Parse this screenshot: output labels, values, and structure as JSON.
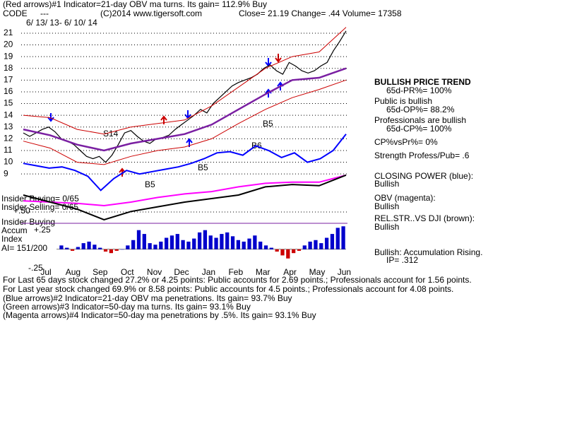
{
  "header": {
    "line1": "(Red arrows)#1 Indicator=21-day OBV ma turns. Its gain= 112.9% Buy",
    "code_label": "CODE",
    "code": "---",
    "copyright": "(C)2014 www.tigersoft.com",
    "quote": "Close=  21.19  Change= .44 Volume= 17358",
    "date_range": "6/ 13/ 13- 6/ 10/ 14"
  },
  "side_panel": [
    "BULLISH PRICE TREND",
    "65d-PR%= 100%",
    "Public is bullish",
    "65d-OP%= 88.2%",
    "Professionals are bullish",
    "65d-CP%= 100%",
    "CP%vsPr%=  0%",
    "Strength Profess/Pub= .6",
    "CLOSING POWER (blue):",
    "Bullish",
    "OBV (magenta):",
    "Bullish",
    "REL.STR..VS DJI (brown):",
    "Bullish",
    "Bullish: Accumulation Rising.",
    "IP=  .312"
  ],
  "left_labels": [
    "Insider Buying= 0/65",
    "Insider Selling= 0/65",
    "Insider Buying",
    "Accum",
    "Index",
    "AI= 151/200"
  ],
  "annotations": [
    "S14",
    "B5",
    "B6",
    "B5",
    "B5"
  ],
  "footer": [
    "For Last 65 days stock changed  27.2% or  4.25 points:  Public accounts for  2.69 points.;  Professionals account for  1.56 points.",
    "For Last year stock changed  69.9% or  8.58 points:  Public accounts for  4.5 points.;  Professionals account for  4.08 points.",
    "(Blue arrows)#2 Indicator=21-day OBV ma penetrations. Its gain= 93.7% Buy",
    "(Green arrows)#3 Indicator=50-day ma turns. Its gain= 93.1% Buy",
    "(Magenta arrows)#4 Indicator=50-day ma penetrations by .5%. Its gain= 93.1% Buy"
  ],
  "chart_data": [
    {
      "type": "line",
      "x_labels": [
        "Jul",
        "Aug",
        "Sep",
        "Oct",
        "Nov",
        "Dec",
        "Jan",
        "Feb",
        "Mar",
        "Apr",
        "May",
        "Jun"
      ],
      "ylim": [
        4.6,
        21.9
      ],
      "yticks": [
        9,
        10,
        11,
        12,
        13,
        14,
        15,
        16,
        17,
        18,
        19,
        20,
        21
      ],
      "grid": true,
      "series": [
        {
          "color": "#000000",
          "width": 1.2,
          "values": [
            12.5,
            12.2,
            12.5,
            12.8,
            13.0,
            12.6,
            12.0,
            11.8,
            11.5,
            11.0,
            10.5,
            10.3,
            10.5,
            10.0,
            10.6,
            11.5,
            12.5,
            12.7,
            12.2,
            11.8,
            11.6,
            12.0,
            12.1,
            12.3,
            12.8,
            13.2,
            13.6,
            14.0,
            14.5,
            14.2,
            15.0,
            15.5,
            16.0,
            16.5,
            16.8,
            17.0,
            17.2,
            17.5,
            18.0,
            18.3,
            17.8,
            17.5,
            18.5,
            18.2,
            17.8,
            17.6,
            17.8,
            18.2,
            18.5,
            19.5,
            20.3,
            21.19
          ]
        },
        {
          "color": "#cc0000",
          "width": 1,
          "values": [
            14.0,
            13.8,
            12.8,
            12.4,
            13.0,
            13.3,
            13.6,
            14.8,
            16.4,
            18.0,
            19.0,
            19.4,
            21.5
          ]
        },
        {
          "color": "#cc0000",
          "width": 1,
          "values": [
            11.8,
            11.2,
            10.0,
            9.8,
            10.5,
            11.0,
            11.3,
            12.0,
            13.3,
            14.5,
            15.5,
            16.2,
            17.0
          ]
        },
        {
          "color": "#7a1fa2",
          "width": 2.5,
          "values": [
            12.8,
            12.3,
            11.5,
            11.0,
            11.6,
            12.0,
            12.4,
            13.2,
            14.5,
            15.8,
            17.0,
            17.2,
            18.0
          ]
        },
        {
          "color": "#0000ff",
          "width": 2,
          "values": [
            9.9,
            9.7,
            9.5,
            9.6,
            9.3,
            8.8,
            7.6,
            8.6,
            9.3,
            9.0,
            9.2,
            9.4,
            9.6,
            9.9,
            10.3,
            10.8,
            10.9,
            10.6,
            11.4,
            11.0,
            10.4,
            10.8,
            10.0,
            10.3,
            11.0,
            12.4
          ]
        },
        {
          "color": "#ff00ff",
          "width": 2,
          "values": [
            6.7,
            6.6,
            6.5,
            6.3,
            6.6,
            7.0,
            7.3,
            7.5,
            7.9,
            8.2,
            8.3,
            8.3,
            8.9
          ]
        },
        {
          "color": "#000000",
          "width": 2,
          "values": [
            7.2,
            6.6,
            6.0,
            5.1,
            5.8,
            6.2,
            6.6,
            6.9,
            7.2,
            7.9,
            8.1,
            8.0,
            8.9
          ]
        }
      ]
    },
    {
      "type": "bar",
      "ylim": [
        -0.27,
        0.33
      ],
      "yticks": [
        {
          "value": 0.5,
          "label": "+.50"
        },
        {
          "value": 0.25,
          "label": "+.25"
        },
        {
          "value": -0.25,
          "label": "-.25"
        }
      ],
      "pos_color": "#0000cc",
      "neg_color": "#cc0000",
      "values": [
        0.05,
        0.02,
        -0.02,
        0.03,
        0.08,
        0.1,
        0.06,
        0.02,
        -0.03,
        -0.05,
        -0.02,
        0.0,
        0.05,
        0.12,
        0.25,
        0.2,
        0.08,
        0.06,
        0.1,
        0.15,
        0.18,
        0.2,
        0.12,
        0.1,
        0.14,
        0.22,
        0.25,
        0.18,
        0.15,
        0.2,
        0.22,
        0.17,
        0.12,
        0.1,
        0.14,
        0.18,
        0.1,
        0.05,
        0.02,
        -0.03,
        -0.08,
        -0.12,
        -0.05,
        -0.02,
        0.05,
        0.1,
        0.12,
        0.08,
        0.15,
        0.2,
        0.28,
        0.3
      ]
    }
  ]
}
